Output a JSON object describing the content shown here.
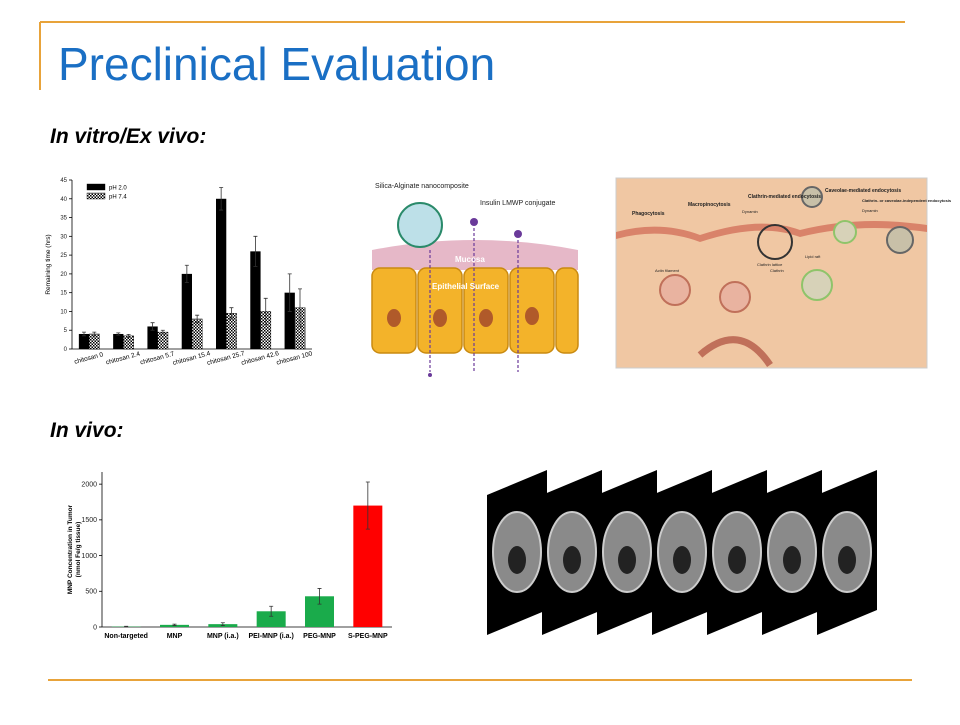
{
  "title": "Preclinical Evaluation",
  "sections": [
    "In vitro/Ex vivo:",
    "In vivo:"
  ],
  "diagram_mucosa": {
    "labels": [
      "Silica-Alginate nanocomposite",
      "Insulin LMWP conjugate",
      "Mucosa",
      "Epithelial Surface"
    ]
  },
  "diagram_endocytosis": {
    "labels": [
      "Phagocytosis",
      "Macropinocytosis",
      "Clathrin-mediated endocytosis",
      "Caveolae-mediated endocytosis",
      "Clathrin- or caveolae-independent endocytosis",
      "Dynamin",
      "Actin filament",
      "Clathrin lattice",
      "Clathrin",
      "Lipid raft",
      "Dynamin"
    ]
  },
  "chart_data": [
    {
      "type": "bar",
      "ylabel": [
        "Remaining time (hrs)"
      ],
      "categories": [
        "chitosan 0",
        "chitosan 2.4",
        "chitosan 5.7",
        "chitosan 15.4",
        "chitosan 25.7",
        "chitosan 42.6",
        "chitosan 100"
      ],
      "series": [
        {
          "name": "pH 2.0",
          "color": "#000000",
          "values": [
            4,
            4,
            6,
            20,
            40,
            26,
            15
          ],
          "errors": [
            0.5,
            0.3,
            1,
            2.3,
            3,
            4,
            5
          ]
        },
        {
          "name": "pH 7.4",
          "color": "#000000",
          "pattern": "checker",
          "values": [
            4,
            3.5,
            4.5,
            8,
            9.5,
            10,
            11
          ],
          "errors": [
            0.5,
            0.4,
            0.5,
            1,
            1.5,
            3.5,
            5
          ]
        }
      ],
      "ylim": [
        0,
        45
      ],
      "yticks": [
        0,
        5,
        10,
        15,
        20,
        25,
        30,
        35,
        40,
        45
      ],
      "legend": "top-left"
    },
    {
      "type": "bar",
      "ylabel": [
        "MNP Concentration in Tumor",
        "(nmol Fe/g tissue)"
      ],
      "categories": [
        "Non-targeted",
        "MNP",
        "MNP (i.a.)",
        "PEI-MNP (i.a.)",
        "PEG-MNP",
        "S-PEG-MNP"
      ],
      "values": [
        5,
        30,
        40,
        220,
        430,
        1700
      ],
      "errors": [
        5,
        10,
        20,
        70,
        110,
        330
      ],
      "colors": [
        "#1aab4b",
        "#1aab4b",
        "#1aab4b",
        "#1aab4b",
        "#1aab4b",
        "#ff0000"
      ],
      "ylim": [
        0,
        2170
      ],
      "yticks": [
        0,
        500,
        1000,
        1500,
        2000
      ]
    }
  ]
}
